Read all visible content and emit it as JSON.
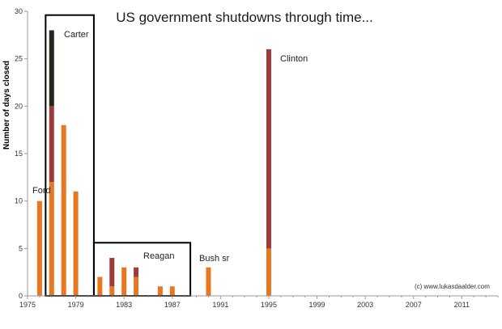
{
  "chart_data": {
    "type": "bar",
    "stacked": true,
    "title": "US government shutdowns through time...",
    "xlabel": "",
    "ylabel": "Number of days closed",
    "xlim": [
      1975,
      2014
    ],
    "ylim": [
      0,
      30
    ],
    "x_ticks": [
      1975,
      1979,
      1983,
      1987,
      1991,
      1995,
      1999,
      2003,
      2007,
      2011
    ],
    "y_ticks": [
      0,
      5,
      10,
      15,
      20,
      25,
      30
    ],
    "series_colors": {
      "shutdown_1": "#e87722",
      "shutdown_2": "#9e3a3a",
      "shutdown_3": "#1f2a1a"
    },
    "bars": [
      {
        "x": 1976,
        "segments": [
          10
        ]
      },
      {
        "x": 1977,
        "segments": [
          12,
          8,
          8
        ]
      },
      {
        "x": 1978,
        "segments": [
          18
        ]
      },
      {
        "x": 1979,
        "segments": [
          11
        ]
      },
      {
        "x": 1981,
        "segments": [
          2
        ]
      },
      {
        "x": 1982,
        "segments": [
          1,
          3
        ]
      },
      {
        "x": 1983,
        "segments": [
          3
        ]
      },
      {
        "x": 1984,
        "segments": [
          2,
          1
        ]
      },
      {
        "x": 1986,
        "segments": [
          1
        ]
      },
      {
        "x": 1987,
        "segments": [
          1
        ]
      },
      {
        "x": 1990,
        "segments": [
          3
        ]
      },
      {
        "x": 1995,
        "segments": [
          5,
          21
        ]
      }
    ],
    "presidents": [
      {
        "name": "Ford"
      },
      {
        "name": "Carter",
        "box": {
          "x_from": 1976.5,
          "x_to": 1980.5,
          "y_top": 29.6
        }
      },
      {
        "name": "Reagan",
        "box": {
          "x_from": 1980.5,
          "x_to": 1988.5,
          "y_top": 5.6
        }
      },
      {
        "name": "Bush sr"
      },
      {
        "name": "Clinton"
      }
    ],
    "credit": "(c) www.lukasdaalder.com"
  }
}
